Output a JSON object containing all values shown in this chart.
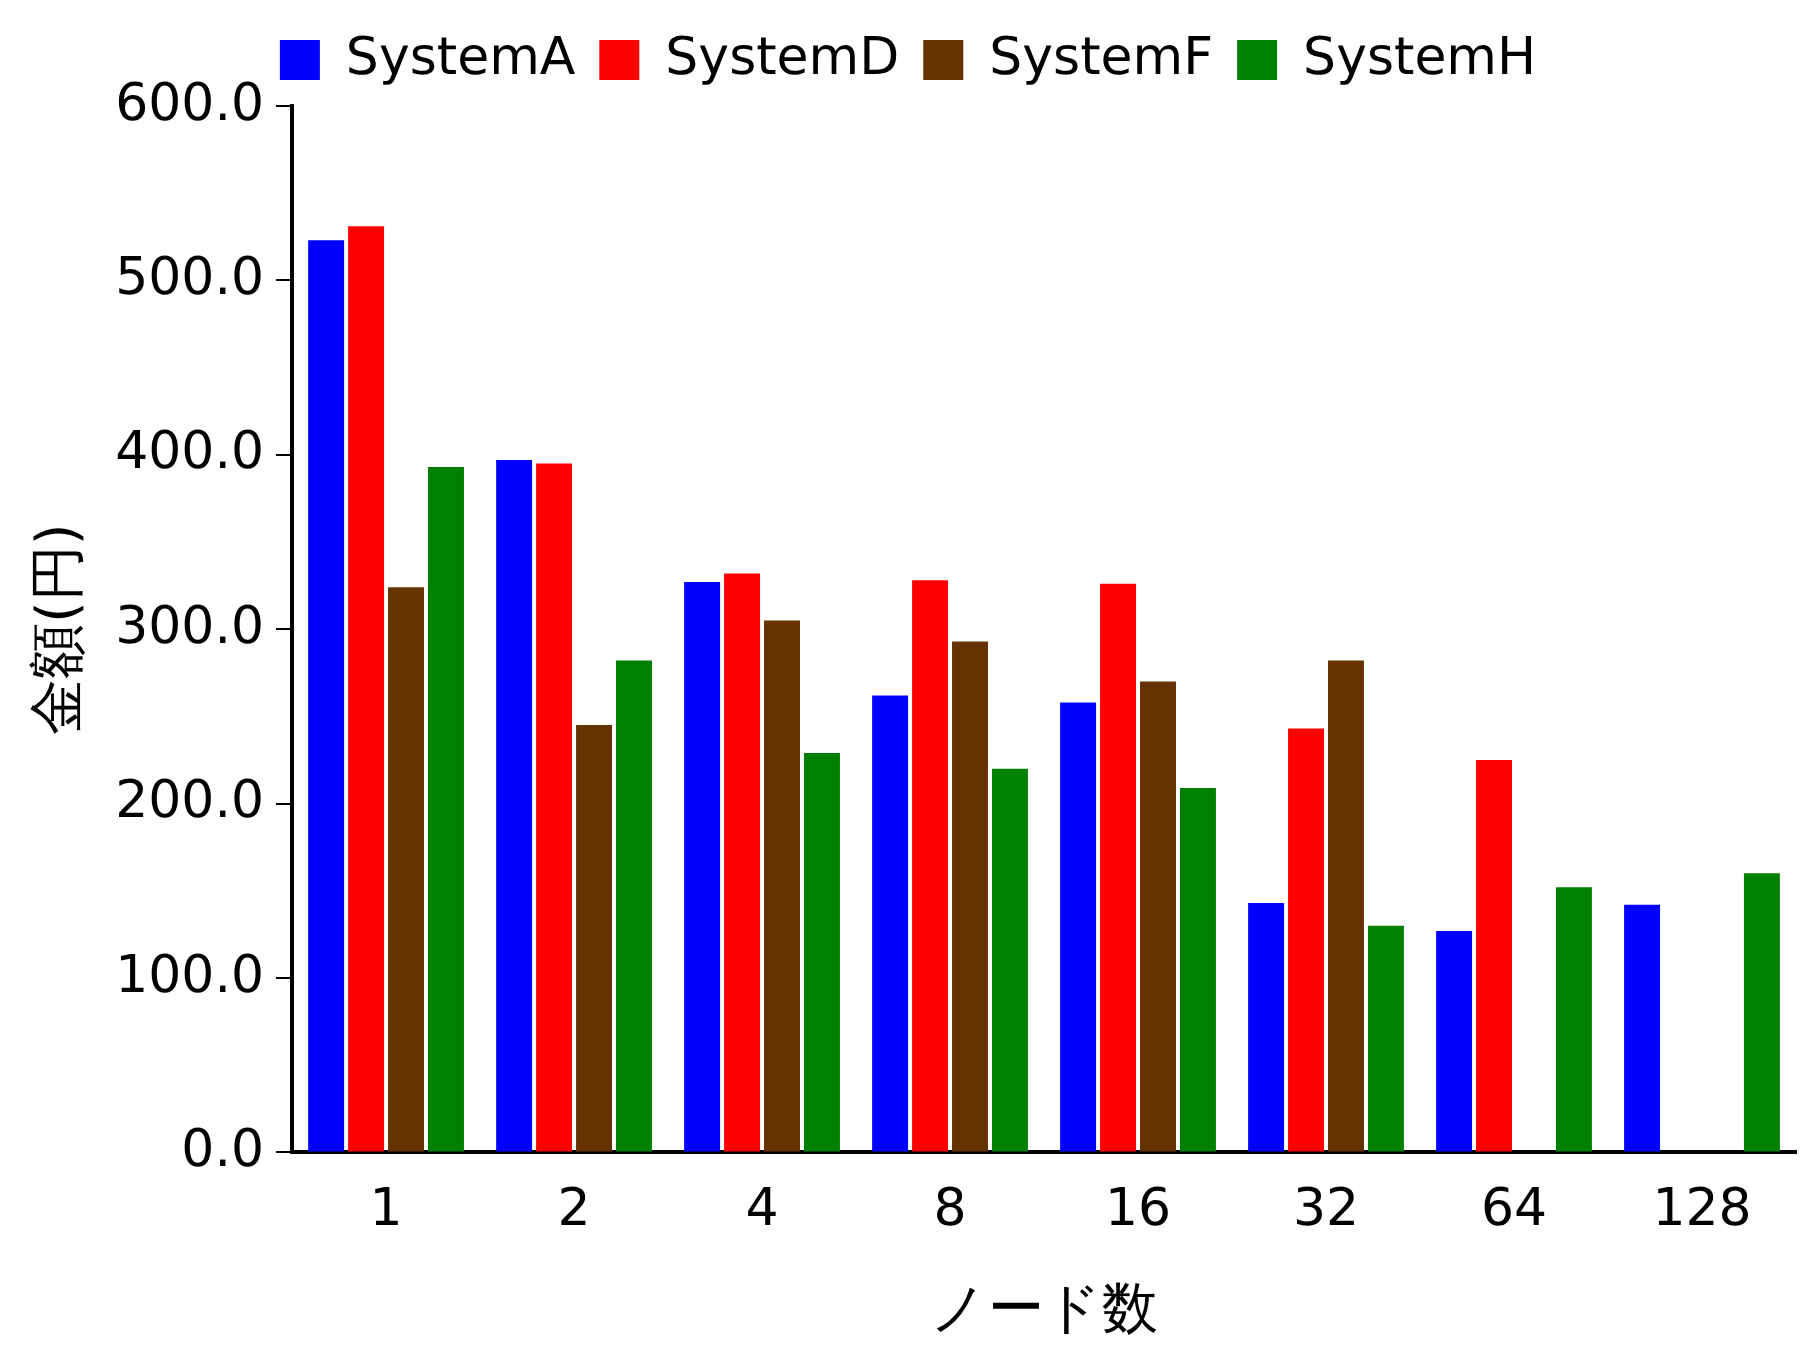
{
  "chart_data": {
    "type": "bar",
    "xlabel": "ノード数",
    "ylabel": "金額(円)",
    "categories": [
      "1",
      "2",
      "4",
      "8",
      "16",
      "32",
      "64",
      "128"
    ],
    "series": [
      {
        "name": "SystemA",
        "color": "#0000ff",
        "values": [
          523,
          397,
          327,
          262,
          258,
          143,
          127,
          142
        ]
      },
      {
        "name": "SystemD",
        "color": "#ff0000",
        "values": [
          531,
          395,
          332,
          328,
          326,
          243,
          225,
          null
        ]
      },
      {
        "name": "SystemF",
        "color": "#663300",
        "values": [
          324,
          245,
          305,
          293,
          270,
          282,
          null,
          null
        ]
      },
      {
        "name": "SystemH",
        "color": "#008000",
        "values": [
          393,
          282,
          229,
          220,
          209,
          130,
          152,
          160
        ]
      }
    ],
    "ylim": [
      0,
      600
    ],
    "yticks": [
      {
        "value": 0,
        "label": "0.0"
      },
      {
        "value": 100,
        "label": "100.0"
      },
      {
        "value": 200,
        "label": "200.0"
      },
      {
        "value": 300,
        "label": "300.0"
      },
      {
        "value": 400,
        "label": "400.0"
      },
      {
        "value": 500,
        "label": "500.0"
      },
      {
        "value": 600,
        "label": "600.0"
      }
    ],
    "grid": false,
    "legend": "top"
  }
}
